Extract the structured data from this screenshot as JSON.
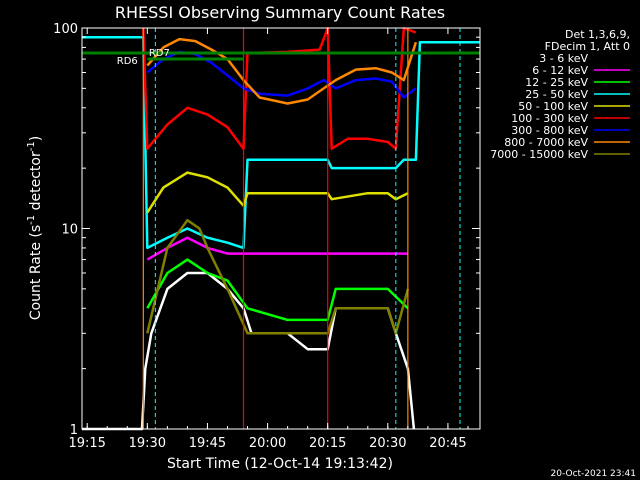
{
  "chart_data": {
    "type": "line",
    "title": "RHESSI Observing Summary Count Rates",
    "xlabel": "Start Time (12-Oct-14 19:13:42)",
    "ylabel_base": "Count Rate (s",
    "ylabel_exp1": "-1",
    "ylabel_mid": " detector",
    "ylabel_exp2": "-1",
    "ylabel_end": ")",
    "y_scale": "log",
    "ylim": [
      1,
      100
    ],
    "xlim": [
      "19:13:42",
      "20:53:00"
    ],
    "x_ticks": [
      {
        "t": "19:15",
        "label": "19:15"
      },
      {
        "t": "19:30",
        "label": "19:30"
      },
      {
        "t": "19:45",
        "label": "19:45"
      },
      {
        "t": "20:00",
        "label": "20:00"
      },
      {
        "t": "20:15",
        "label": "20:15"
      },
      {
        "t": "20:30",
        "label": "20:30"
      },
      {
        "t": "20:45",
        "label": "20:45"
      }
    ],
    "y_ticks": [
      {
        "v": 1,
        "label": "1"
      },
      {
        "v": 10,
        "label": "10"
      },
      {
        "v": 100,
        "label": "100"
      }
    ],
    "legend_header": [
      "Det 1,3,6,9,",
      "FDecim 1, Att 0"
    ],
    "legend_placement": "right",
    "series": [
      {
        "name": "3 - 6 keV",
        "color": "#ffffff",
        "rmp_color": "#000000",
        "points": [
          [
            "19:13:42",
            1
          ],
          [
            "19:28:40",
            1
          ],
          [
            "19:29:30",
            2
          ],
          [
            "19:31:00",
            3
          ],
          [
            "19:35:00",
            5
          ],
          [
            "19:40:00",
            6
          ],
          [
            "19:45:00",
            6
          ],
          [
            "19:50:00",
            5
          ],
          [
            "19:54:00",
            4
          ],
          [
            "19:56:00",
            3
          ],
          [
            "20:05:00",
            3
          ],
          [
            "20:10:00",
            2.5
          ],
          [
            "20:15:00",
            2.5
          ],
          [
            "20:17:00",
            4
          ],
          [
            "20:25:00",
            4
          ],
          [
            "20:30:00",
            4
          ],
          [
            "20:32:00",
            3
          ],
          [
            "20:35:00",
            2
          ],
          [
            "20:36:30",
            1
          ]
        ]
      },
      {
        "name": "6 - 12 keV",
        "color": "#ff00ff",
        "points": [
          [
            "19:30:00",
            7
          ],
          [
            "19:35:00",
            8
          ],
          [
            "19:40:00",
            9
          ],
          [
            "19:45:00",
            8
          ],
          [
            "19:50:00",
            7.5
          ],
          [
            "19:55:00",
            7.5
          ],
          [
            "20:05:00",
            7.5
          ],
          [
            "20:15:00",
            7.5
          ],
          [
            "20:20:00",
            7.5
          ],
          [
            "20:30:00",
            7.5
          ],
          [
            "20:35:00",
            7.5
          ]
        ]
      },
      {
        "name": "12 - 25 keV",
        "color": "#00ff00",
        "points": [
          [
            "19:30:00",
            4
          ],
          [
            "19:35:00",
            6
          ],
          [
            "19:40:00",
            7
          ],
          [
            "19:45:00",
            6
          ],
          [
            "19:50:00",
            5.5
          ],
          [
            "19:55:00",
            4
          ],
          [
            "20:05:00",
            3.5
          ],
          [
            "20:15:00",
            3.5
          ],
          [
            "20:17:00",
            5
          ],
          [
            "20:25:00",
            5
          ],
          [
            "20:30:00",
            5
          ],
          [
            "20:35:00",
            4
          ]
        ]
      },
      {
        "name": "25 - 50 keV",
        "color": "#00ffff",
        "points": [
          [
            "19:13:42",
            90
          ],
          [
            "19:29:00",
            90
          ],
          [
            "19:30:00",
            8
          ],
          [
            "19:35:00",
            9
          ],
          [
            "19:40:00",
            10
          ],
          [
            "19:45:00",
            9
          ],
          [
            "19:50:00",
            8.5
          ],
          [
            "19:54:00",
            8
          ],
          [
            "19:55:00",
            22
          ],
          [
            "20:15:00",
            22
          ],
          [
            "20:16:00",
            20
          ],
          [
            "20:20:00",
            20
          ],
          [
            "20:25:00",
            20
          ],
          [
            "20:32:00",
            20
          ],
          [
            "20:34:00",
            22
          ],
          [
            "20:37:00",
            22
          ],
          [
            "20:38:00",
            85
          ],
          [
            "20:53:00",
            85
          ]
        ]
      },
      {
        "name": "50 - 100 keV",
        "color": "#e0e000",
        "points": [
          [
            "19:30:00",
            12
          ],
          [
            "19:34:00",
            16
          ],
          [
            "19:40:00",
            19
          ],
          [
            "19:45:00",
            18
          ],
          [
            "19:50:00",
            16
          ],
          [
            "19:54:00",
            13
          ],
          [
            "19:55:00",
            15
          ],
          [
            "20:10:00",
            15
          ],
          [
            "20:15:00",
            15
          ],
          [
            "20:16:00",
            14
          ],
          [
            "20:25:00",
            15
          ],
          [
            "20:30:00",
            15
          ],
          [
            "20:32:00",
            14
          ],
          [
            "20:35:00",
            15
          ]
        ]
      },
      {
        "name": "100 - 300 keV",
        "color": "#ff0000",
        "points": [
          [
            "19:29:00",
            100
          ],
          [
            "19:30:00",
            25
          ],
          [
            "19:35:00",
            33
          ],
          [
            "19:40:00",
            40
          ],
          [
            "19:45:00",
            37
          ],
          [
            "19:50:00",
            32
          ],
          [
            "19:54:00",
            25
          ],
          [
            "19:55:00",
            75
          ],
          [
            "20:05:00",
            76
          ],
          [
            "20:13:00",
            78
          ],
          [
            "20:15:00",
            100
          ],
          [
            "20:16:00",
            25
          ],
          [
            "20:20:00",
            28
          ],
          [
            "20:25:00",
            28
          ],
          [
            "20:30:00",
            27
          ],
          [
            "20:32:00",
            25
          ],
          [
            "20:34:00",
            100
          ],
          [
            "20:37:00",
            95
          ]
        ]
      },
      {
        "name": "300 - 800 keV",
        "color": "#0000ff",
        "points": [
          [
            "19:30:00",
            60
          ],
          [
            "19:34:00",
            70
          ],
          [
            "19:38:00",
            76
          ],
          [
            "19:42:00",
            74
          ],
          [
            "19:46:00",
            67
          ],
          [
            "19:50:00",
            58
          ],
          [
            "19:54:00",
            50
          ],
          [
            "19:58:00",
            47
          ],
          [
            "20:05:00",
            46
          ],
          [
            "20:10:00",
            50
          ],
          [
            "20:14:00",
            55
          ],
          [
            "20:17:00",
            50
          ],
          [
            "20:22:00",
            55
          ],
          [
            "20:27:00",
            56
          ],
          [
            "20:31:00",
            54
          ],
          [
            "20:34:00",
            45
          ],
          [
            "20:37:00",
            50
          ]
        ]
      },
      {
        "name": "800 - 7000 keV",
        "color": "#ff8800",
        "points": [
          [
            "19:30:00",
            65
          ],
          [
            "19:34:00",
            80
          ],
          [
            "19:38:00",
            88
          ],
          [
            "19:42:00",
            86
          ],
          [
            "19:46:00",
            78
          ],
          [
            "19:50:00",
            70
          ],
          [
            "19:54:00",
            55
          ],
          [
            "19:58:00",
            45
          ],
          [
            "20:05:00",
            42
          ],
          [
            "20:10:00",
            44
          ],
          [
            "20:14:00",
            50
          ],
          [
            "20:17:00",
            55
          ],
          [
            "20:22:00",
            62
          ],
          [
            "20:27:00",
            63
          ],
          [
            "20:31:00",
            60
          ],
          [
            "20:34:00",
            55
          ],
          [
            "20:37:00",
            85
          ]
        ]
      },
      {
        "name": "7000 - 15000 keV",
        "color": "#808000",
        "points": [
          [
            "19:30:00",
            3
          ],
          [
            "19:35:00",
            8
          ],
          [
            "19:40:00",
            11
          ],
          [
            "19:43:00",
            10
          ],
          [
            "19:45:00",
            8
          ],
          [
            "19:50:00",
            5
          ],
          [
            "19:55:00",
            3
          ],
          [
            "20:05:00",
            3
          ],
          [
            "20:10:00",
            3
          ],
          [
            "20:15:00",
            3
          ],
          [
            "20:17:00",
            4
          ],
          [
            "20:25:00",
            4
          ],
          [
            "20:30:00",
            4
          ],
          [
            "20:32:00",
            3
          ],
          [
            "20:35:00",
            5
          ]
        ]
      }
    ],
    "annotations": [
      {
        "label": "RD6",
        "color": "#008000",
        "t_start": "19:13:42",
        "t_end": "20:53:00",
        "level": 75,
        "label_anchor_t": "19:25:00",
        "label_below": true
      },
      {
        "label": "RD7",
        "color": "#008000",
        "t_start": "19:30:00",
        "t_end": "19:54:00",
        "level": 70,
        "label_anchor_t": "19:33:00",
        "label_below": false
      }
    ],
    "boundaries": [
      {
        "t": "19:29:00",
        "style": "solid",
        "color": "#ff8800"
      },
      {
        "t": "19:54:00",
        "style": "solid",
        "color": "#ff0000"
      },
      {
        "t": "20:15:00",
        "style": "solid",
        "color": "#ff0000"
      },
      {
        "t": "20:35:00",
        "style": "solid",
        "color": "#ff8800"
      }
    ],
    "dashed_markers": [
      {
        "t": "19:13:42",
        "color": "#00ffff"
      },
      {
        "t": "19:32:00",
        "color": "#00ffff"
      },
      {
        "t": "20:32:00",
        "color": "#00ffff"
      },
      {
        "t": "20:48:00",
        "color": "#00ffff"
      }
    ],
    "timestamp": "20-Oct-2021 23:41"
  }
}
